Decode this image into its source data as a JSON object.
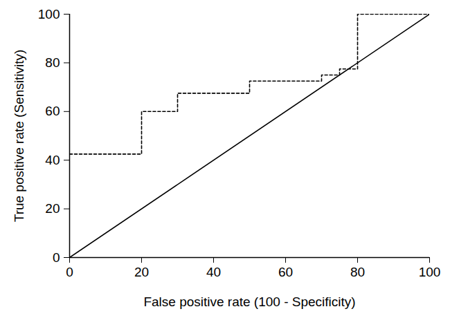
{
  "chart_data": {
    "type": "line",
    "x_label": "False positive rate (100 - Specificity)",
    "y_label": "True positive rate (Sensitivity)",
    "xlim": [
      0,
      100
    ],
    "ylim": [
      0,
      100
    ],
    "xticks": [
      0,
      20,
      40,
      60,
      80,
      100
    ],
    "yticks": [
      0,
      20,
      40,
      60,
      80,
      100
    ],
    "grid": false,
    "series": [
      {
        "type": "step",
        "color": "#000000",
        "line_style": "dashed",
        "x": [
          0,
          20,
          30,
          50,
          70,
          75,
          80,
          100
        ],
        "values": [
          42.5,
          60,
          67.5,
          72.5,
          75,
          77.5,
          100,
          100
        ]
      },
      {
        "type": "line",
        "color": "#000000",
        "line_style": "solid",
        "x": [
          0,
          100
        ],
        "values": [
          0,
          100
        ]
      }
    ]
  }
}
